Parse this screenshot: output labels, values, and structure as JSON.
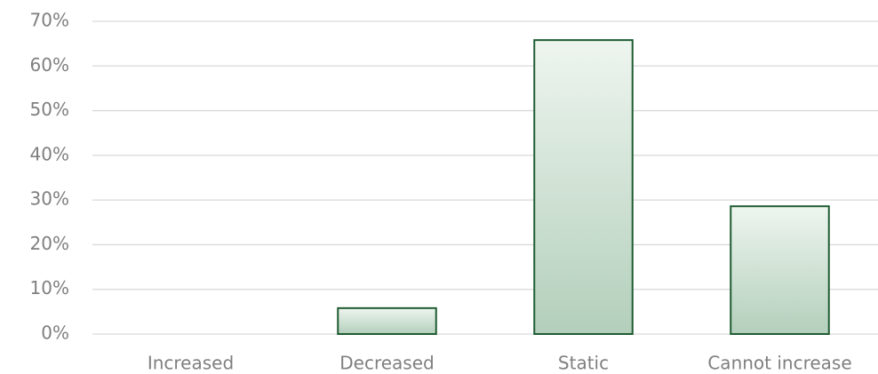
{
  "chart_data": {
    "type": "bar",
    "categories": [
      "Increased",
      "Decreased",
      "Static",
      "Cannot increase"
    ],
    "values": [
      0,
      5.8,
      65.8,
      28.6
    ],
    "color": "#1e5c32",
    "ylim": [
      0,
      70
    ],
    "yticks": [
      {
        "value": 0,
        "label": "0%"
      },
      {
        "value": 10,
        "label": "10%"
      },
      {
        "value": 20,
        "label": "20%"
      },
      {
        "value": 30,
        "label": "30%"
      },
      {
        "value": 40,
        "label": "40%"
      },
      {
        "value": 50,
        "label": "50%"
      },
      {
        "value": 60,
        "label": "60%"
      },
      {
        "value": 70,
        "label": "70%"
      }
    ],
    "grid": true
  }
}
